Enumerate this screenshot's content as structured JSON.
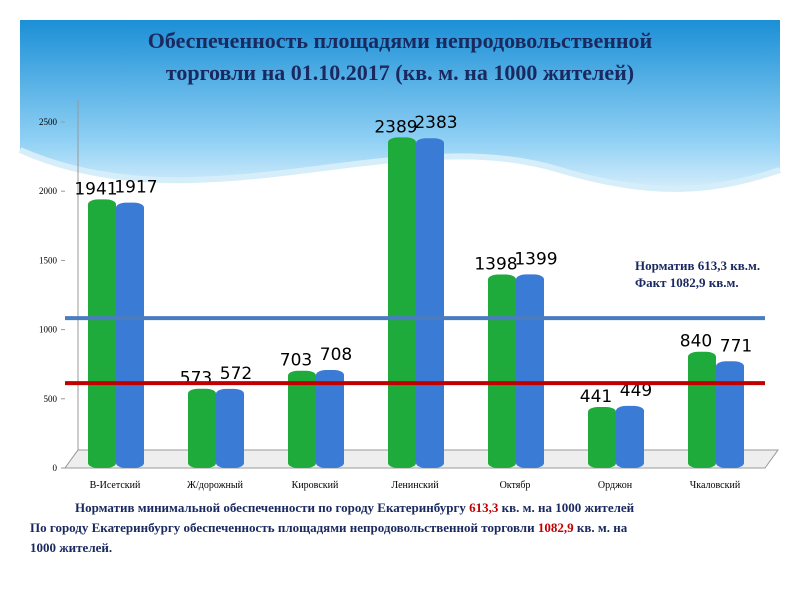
{
  "chart_data": {
    "type": "bar",
    "title": [
      "Обеспеченность площадями непродовольственной",
      "торговли на 01.10.2017 (кв. м. на 1000 жителей)"
    ],
    "categories": [
      "В-Исетский",
      "Ж/дорожный",
      "Кировский",
      "Ленинский",
      "Октябр",
      "Орджон",
      "Чкаловский"
    ],
    "series": [
      {
        "color": "#1faa3c",
        "values": [
          1941,
          573,
          703,
          2389,
          1398,
          441,
          840
        ]
      },
      {
        "color": "#3a7bd5",
        "values": [
          1917,
          572,
          708,
          2383,
          1399,
          449,
          771
        ]
      }
    ],
    "ylim": [
      0,
      2500
    ],
    "yticks": [
      0,
      500,
      1000,
      1500,
      2000,
      2500
    ],
    "reference_lines": [
      {
        "value": 613.3,
        "color": "#c00000",
        "label": "Норматив 613,3 кв.м."
      },
      {
        "value": 1082.9,
        "color": "#4a7cc0",
        "label": "Факт  1082,9  кв.м."
      }
    ]
  },
  "footer": {
    "line1": [
      "Норматив минимальной обеспеченности по городу Екатеринбургу ",
      "613,3",
      " кв.  м. на 1000 жителей"
    ],
    "line2": [
      "По городу Екатеринбургу обеспеченность площадями непродовольственной торговли ",
      "1082,9",
      " кв. м. на"
    ],
    "line3": "1000 жителей."
  }
}
